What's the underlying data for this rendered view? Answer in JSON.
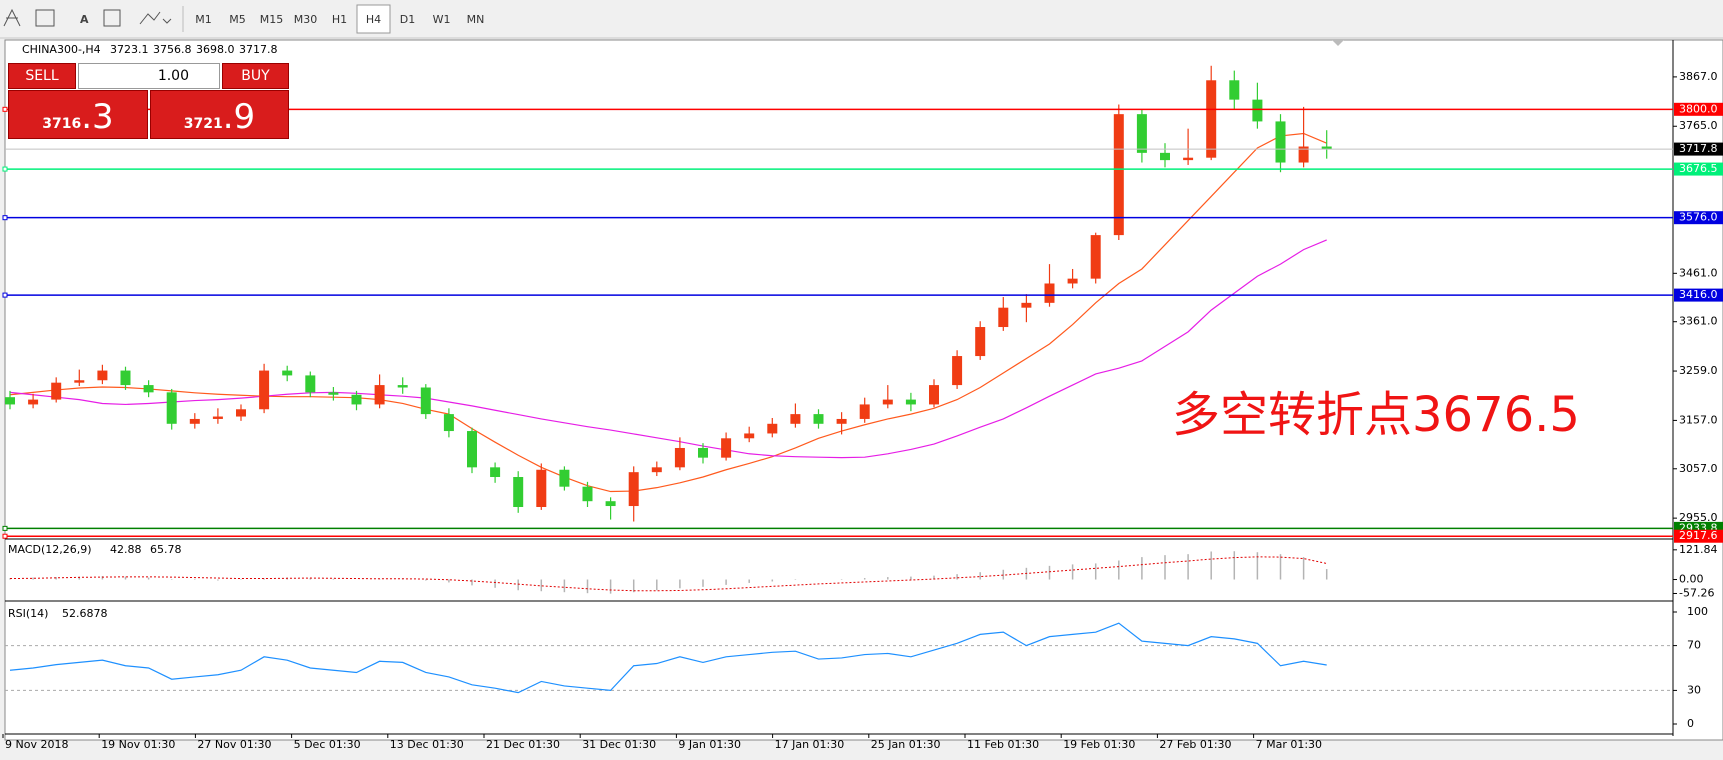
{
  "toolbar": {
    "timeframes": [
      "M1",
      "M5",
      "M15",
      "M30",
      "H1",
      "H4",
      "D1",
      "W1",
      "MN"
    ],
    "active": "H4"
  },
  "trade_panel": {
    "sell": "SELL",
    "buy": "BUY",
    "volume": "1.00",
    "bid_small": "3716",
    "bid_big": ".3",
    "ask_small": "3721",
    "ask_big": ".9"
  },
  "chart_data": {
    "type": "candlestick",
    "symbol": "CHINA300-,H4",
    "last_bar_labels": [
      "3723.1",
      "3756.8",
      "3698.0",
      "3717.8"
    ],
    "annotation": "多空转折点3676.5",
    "up_color": "#f03c14",
    "down_color": "#32cd32",
    "open": [
      3205,
      3190,
      3200,
      3235,
      3240,
      3260,
      3230,
      3215,
      3150,
      3160,
      3165,
      3180,
      3260,
      3250,
      3215,
      3210,
      3190,
      3230,
      3225,
      3170,
      3135,
      3060,
      3040,
      2978,
      3055,
      3020,
      2990,
      2980,
      3050,
      3060,
      3100,
      3080,
      3120,
      3130,
      3150,
      3170,
      3150,
      3160,
      3190,
      3200,
      3190,
      3230,
      3290,
      3350,
      3390,
      3400,
      3440,
      3450,
      3540,
      3790,
      3710,
      3695,
      3700,
      3860,
      3820,
      3775,
      3690,
      3723.1
    ],
    "high": [
      3218,
      3212,
      3246,
      3262,
      3272,
      3268,
      3240,
      3222,
      3172,
      3182,
      3190,
      3274,
      3270,
      3258,
      3226,
      3218,
      3252,
      3246,
      3232,
      3182,
      3142,
      3070,
      3052,
      3068,
      3062,
      3030,
      2998,
      3062,
      3072,
      3122,
      3110,
      3132,
      3144,
      3162,
      3192,
      3180,
      3174,
      3204,
      3230,
      3214,
      3242,
      3302,
      3362,
      3412,
      3418,
      3480,
      3470,
      3545,
      3810,
      3800,
      3730,
      3760,
      3890,
      3880,
      3855,
      3790,
      3805,
      3756.8
    ],
    "low": [
      3180,
      3182,
      3194,
      3228,
      3232,
      3220,
      3205,
      3138,
      3140,
      3150,
      3156,
      3172,
      3238,
      3205,
      3198,
      3178,
      3182,
      3212,
      3160,
      3122,
      3048,
      3028,
      2966,
      2972,
      3012,
      2978,
      2952,
      2948,
      3042,
      3054,
      3068,
      3074,
      3112,
      3122,
      3142,
      3140,
      3128,
      3152,
      3182,
      3176,
      3184,
      3222,
      3282,
      3342,
      3360,
      3392,
      3430,
      3440,
      3530,
      3690,
      3680,
      3685,
      3695,
      3800,
      3760,
      3670,
      3680,
      3698.0
    ],
    "close": [
      3190,
      3200,
      3235,
      3240,
      3260,
      3230,
      3215,
      3150,
      3160,
      3165,
      3180,
      3260,
      3250,
      3215,
      3210,
      3190,
      3230,
      3225,
      3170,
      3135,
      3060,
      3040,
      2978,
      3055,
      3020,
      2990,
      2980,
      3050,
      3060,
      3100,
      3080,
      3120,
      3130,
      3150,
      3170,
      3150,
      3160,
      3190,
      3200,
      3190,
      3230,
      3290,
      3350,
      3390,
      3400,
      3440,
      3450,
      3540,
      3790,
      3710,
      3695,
      3700,
      3860,
      3820,
      3775,
      3690,
      3723.1,
      3717.8
    ],
    "overlays": [
      {
        "color": "#ff5a1e",
        "values": [
          3210,
          3215,
          3220,
          3224,
          3226,
          3225,
          3222,
          3218,
          3214,
          3211,
          3209,
          3207,
          3206,
          3206,
          3205,
          3204,
          3200,
          3192,
          3180,
          3170,
          3140,
          3112,
          3085,
          3060,
          3040,
          3022,
          3010,
          3011,
          3018,
          3028,
          3040,
          3055,
          3068,
          3082,
          3100,
          3120,
          3135,
          3148,
          3160,
          3170,
          3182,
          3200,
          3225,
          3255,
          3285,
          3315,
          3355,
          3400,
          3440,
          3470,
          3520,
          3570,
          3620,
          3670,
          3720,
          3745,
          3750,
          3730
        ]
      },
      {
        "color": "#e61ee6",
        "values": [
          3215,
          3210,
          3205,
          3200,
          3192,
          3190,
          3192,
          3195,
          3198,
          3200,
          3203,
          3207,
          3211,
          3214,
          3215,
          3213,
          3210,
          3207,
          3203,
          3195,
          3187,
          3178,
          3169,
          3160,
          3152,
          3144,
          3137,
          3129,
          3121,
          3113,
          3104,
          3096,
          3088,
          3084,
          3082,
          3081,
          3080,
          3081,
          3088,
          3097,
          3108,
          3125,
          3143,
          3160,
          3183,
          3207,
          3230,
          3253,
          3265,
          3280,
          3310,
          3340,
          3385,
          3420,
          3455,
          3480,
          3510,
          3530
        ]
      }
    ],
    "ylim": [
      2916,
      3935
    ],
    "yticks": [
      {
        "value": 3867,
        "label": "3867.0"
      },
      {
        "value": 3765,
        "label": "3765.0"
      },
      {
        "value": 3461,
        "label": "3461.0"
      },
      {
        "value": 3361,
        "label": "3361.0"
      },
      {
        "value": 3259,
        "label": "3259.0"
      },
      {
        "value": 3157,
        "label": "3157.0"
      },
      {
        "value": 3057,
        "label": "3057.0"
      },
      {
        "value": 2955,
        "label": "2955.0"
      }
    ],
    "levels": [
      {
        "value": 3800,
        "label": "3800.0",
        "color": "#ff0000"
      },
      {
        "value": 3676.5,
        "label": "3676.5",
        "color": "#00f07a"
      },
      {
        "value": 3576,
        "label": "3576.0",
        "color": "#0000e0"
      },
      {
        "value": 3416,
        "label": "3416.0",
        "color": "#0000e0"
      },
      {
        "value": 2933.8,
        "label": "2933.8",
        "color": "#008000"
      },
      {
        "value": 2917.6,
        "label": "2917.6",
        "color": "#ff0000"
      }
    ],
    "time_labels": [
      "9 Nov 2018",
      "19 Nov 01:30",
      "27 Nov 01:30",
      "5 Dec 01:30",
      "13 Dec 01:30",
      "21 Dec 01:30",
      "31 Dec 01:30",
      "9 Jan 01:30",
      "17 Jan 01:30",
      "25 Jan 01:30",
      "11 Feb 01:30",
      "19 Feb 01:30",
      "27 Feb 01:30",
      "7 Mar 01:30"
    ],
    "macd": {
      "title": "MACD(12,26,9)",
      "ylim": [
        -84,
        158
      ],
      "yticks": [
        121.84,
        {
          "value": 0,
          "label": "0.00"
        },
        -57.26
      ],
      "hist_color": "#b4b4b4",
      "signal_color": "#e00000",
      "hist": [
        5,
        8,
        10,
        12,
        14,
        12,
        8,
        2,
        -2,
        -4,
        -2,
        4,
        8,
        6,
        3,
        0,
        2,
        2,
        -4,
        -12,
        -24,
        -34,
        -44,
        -48,
        -52,
        -56,
        -58,
        -52,
        -44,
        -36,
        -30,
        -22,
        -14,
        -8,
        -2,
        0,
        2,
        6,
        10,
        12,
        16,
        22,
        30,
        40,
        48,
        56,
        62,
        66,
        78,
        92,
        100,
        104,
        115,
        116,
        112,
        104,
        92,
        42.88
      ],
      "signal": [
        4,
        5,
        7,
        9,
        10,
        11,
        11,
        10,
        8,
        6,
        4,
        4,
        5,
        6,
        5,
        4,
        3,
        3,
        2,
        -1,
        -6,
        -12,
        -19,
        -26,
        -32,
        -38,
        -43,
        -46,
        -46,
        -45,
        -42,
        -38,
        -33,
        -28,
        -23,
        -18,
        -14,
        -10,
        -6,
        -2,
        2,
        7,
        12,
        18,
        25,
        32,
        39,
        46,
        53,
        61,
        69,
        76,
        84,
        90,
        93,
        92,
        86,
        65.78
      ]
    },
    "rsi": {
      "title": "RSI(14)",
      "ylim": [
        0,
        100
      ],
      "yticks": [
        100,
        70,
        30,
        0
      ],
      "levels": [
        70,
        30
      ],
      "color": "#1e90ff",
      "values": [
        48,
        50,
        53,
        55,
        57,
        52,
        50,
        40,
        42,
        44,
        48,
        60,
        57,
        50,
        48,
        46,
        56,
        55,
        46,
        42,
        35,
        32,
        28,
        38,
        34,
        32,
        30,
        52,
        54,
        60,
        55,
        60,
        62,
        64,
        65,
        58,
        59,
        62,
        63,
        60,
        66,
        72,
        80,
        82,
        70,
        78,
        80,
        82,
        90,
        74,
        72,
        70,
        78,
        76,
        72,
        52,
        56,
        52.6878
      ]
    }
  }
}
